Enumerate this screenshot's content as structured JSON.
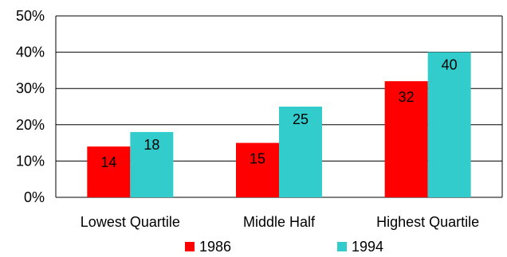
{
  "chart_data": {
    "type": "bar",
    "title": "",
    "xlabel": "",
    "ylabel": "",
    "categories": [
      "Lowest Quartile",
      "Middle Half",
      "Highest Quartile"
    ],
    "series": [
      {
        "name": "1986",
        "color": "#ff0000",
        "values": [
          14,
          15,
          32
        ]
      },
      {
        "name": "1994",
        "color": "#33cccc",
        "values": [
          18,
          25,
          40
        ]
      }
    ],
    "ylim": [
      0,
      50
    ],
    "yticks": [
      0,
      10,
      20,
      30,
      40,
      50
    ],
    "ytick_labels": [
      "0%",
      "10%",
      "20%",
      "30%",
      "40%",
      "50%"
    ],
    "grid": "horizontal",
    "legend_position": "bottom",
    "data_labels": true
  }
}
